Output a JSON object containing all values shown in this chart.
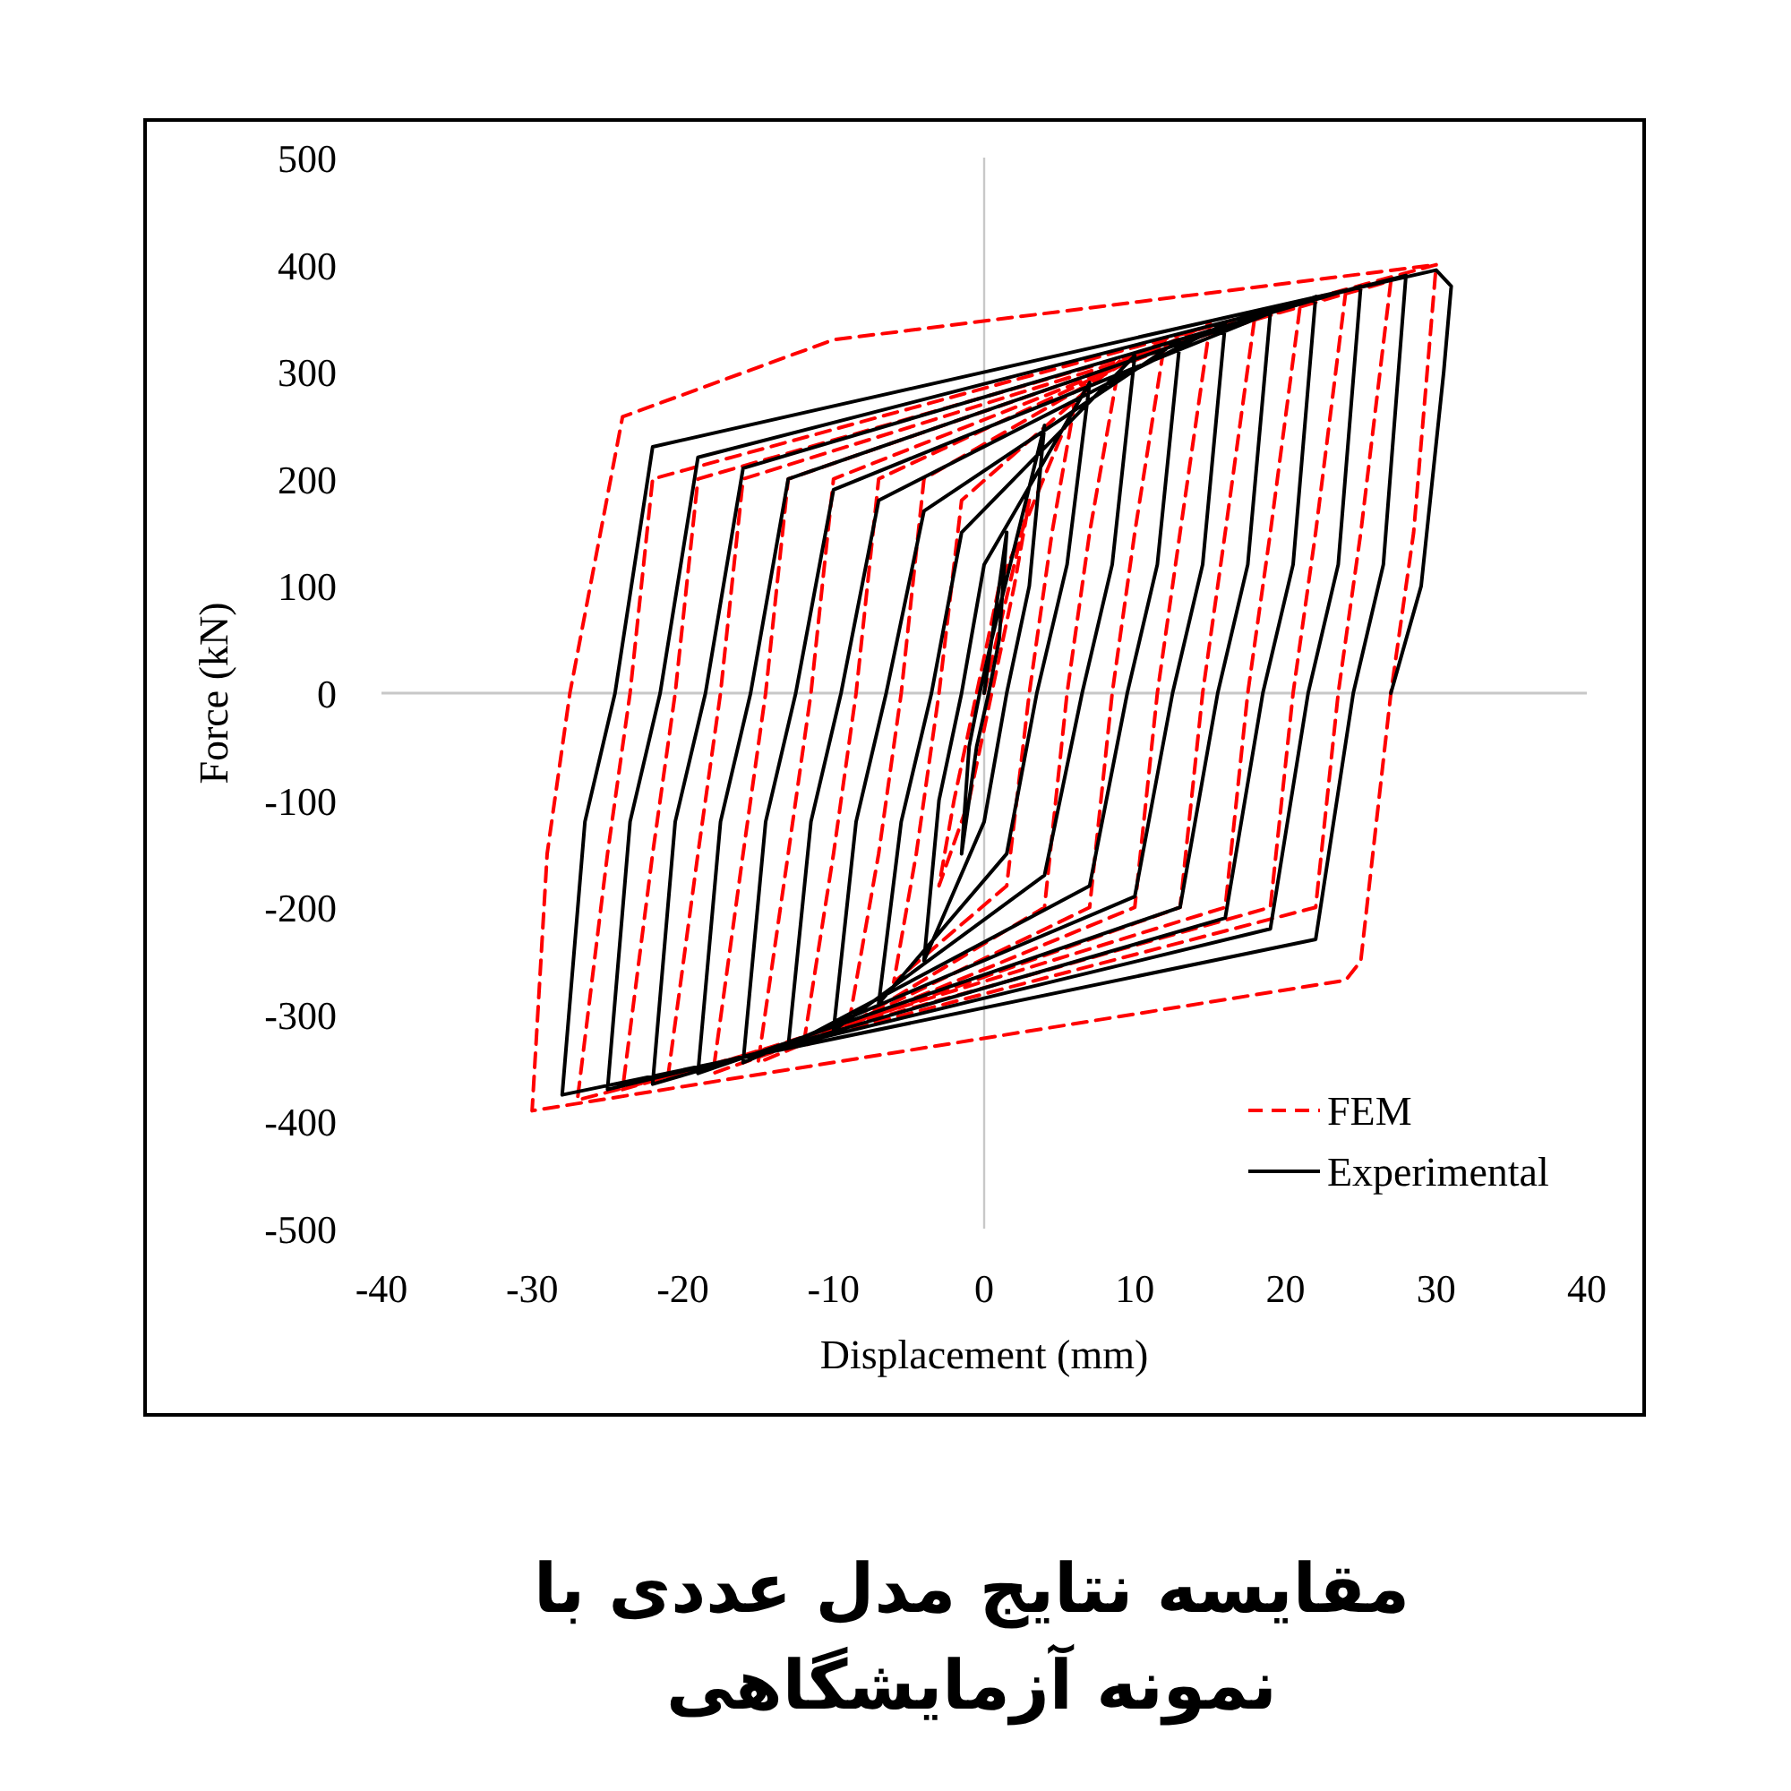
{
  "chart_data": {
    "type": "line",
    "xlabel": "Displacement (mm)",
    "ylabel": "Force (kN)",
    "xlim": [
      -40,
      40
    ],
    "ylim": [
      -500,
      500
    ],
    "xticks": [
      -40,
      -30,
      -20,
      -10,
      0,
      10,
      20,
      30,
      40
    ],
    "yticks": [
      -500,
      -400,
      -300,
      -200,
      -100,
      0,
      100,
      200,
      300,
      400,
      500
    ],
    "grid": false,
    "legend": "bottom right",
    "series": [
      {
        "name": "FEM",
        "color": "#ff0000",
        "line_style": "dashed",
        "x": [
          0,
          3,
          2,
          0.5,
          -1,
          -3,
          -2,
          -0.5,
          1,
          6,
          4.5,
          3,
          1.5,
          -6,
          -4.5,
          -3,
          -1.5,
          9,
          7,
          5.5,
          4,
          -9,
          -7,
          -5.5,
          -4,
          12,
          10,
          8.5,
          7,
          -12,
          -10,
          -8.5,
          -7,
          15,
          13,
          11.5,
          10,
          -15,
          -13,
          -11.5,
          -10,
          18,
          16,
          14.5,
          13,
          -18,
          -16,
          -14.5,
          -13,
          21,
          19,
          17.5,
          16,
          -21,
          -19,
          -17.5,
          -16,
          24,
          22,
          20.5,
          19,
          -24,
          -22,
          -20.5,
          -19,
          27,
          25,
          23.5,
          22,
          -27,
          -25,
          -23.5,
          -22,
          30,
          28.5,
          27,
          25,
          24,
          -30,
          -29,
          -27.5,
          -24,
          -10,
          30
        ],
        "values": [
          0,
          180,
          100,
          0,
          -100,
          -180,
          -100,
          0,
          100,
          270,
          150,
          0,
          -180,
          -270,
          -150,
          0,
          180,
          310,
          150,
          0,
          -200,
          -310,
          -150,
          0,
          200,
          330,
          150,
          0,
          -200,
          -330,
          -150,
          0,
          200,
          345,
          150,
          0,
          -200,
          -345,
          -150,
          0,
          200,
          355,
          150,
          0,
          -200,
          -355,
          -150,
          0,
          200,
          365,
          150,
          0,
          -200,
          -360,
          -150,
          0,
          200,
          375,
          150,
          0,
          -200,
          -370,
          -150,
          0,
          200,
          385,
          150,
          0,
          -200,
          -380,
          -150,
          0,
          200,
          400,
          150,
          0,
          -250,
          -268,
          -390,
          -150,
          0,
          258,
          330,
          400
        ]
      },
      {
        "name": "Experimental",
        "color": "#000000",
        "line_style": "solid",
        "x": [
          0,
          1.5,
          1,
          0.3,
          -0.5,
          -1.5,
          -1,
          -0.3,
          0.5,
          4,
          3,
          1.5,
          0,
          -4,
          -3,
          -1.5,
          0,
          7,
          5.5,
          3.5,
          1.5,
          -7,
          -5.5,
          -3.5,
          -1.5,
          10,
          8.5,
          6.5,
          4,
          -10,
          -8.5,
          -6.5,
          -4,
          13,
          11.5,
          9.5,
          7,
          -13,
          -11.5,
          -9.5,
          -7,
          16,
          14.5,
          12.5,
          10,
          -16,
          -14.5,
          -12.5,
          -10,
          19,
          17.5,
          15.5,
          13,
          -19,
          -17.5,
          -15.5,
          -13,
          22,
          20.5,
          18.5,
          16,
          -22,
          -20.5,
          -18.5,
          -16,
          25,
          23.5,
          21.5,
          19,
          -25,
          -23.5,
          -21.5,
          -19,
          28,
          26.5,
          24.5,
          22,
          -28,
          -26.5,
          -24.5,
          -22,
          30,
          31,
          30.5,
          29,
          27
        ],
        "values": [
          0,
          150,
          50,
          0,
          -50,
          -150,
          -50,
          0,
          50,
          250,
          100,
          0,
          -120,
          -250,
          -100,
          0,
          120,
          290,
          120,
          0,
          -150,
          -290,
          -120,
          0,
          150,
          315,
          120,
          0,
          -170,
          -315,
          -120,
          0,
          170,
          330,
          120,
          0,
          -180,
          -330,
          -120,
          0,
          180,
          345,
          120,
          0,
          -190,
          -345,
          -120,
          0,
          190,
          355,
          120,
          0,
          -200,
          -355,
          -120,
          0,
          200,
          370,
          120,
          0,
          -210,
          -365,
          -120,
          0,
          210,
          380,
          120,
          0,
          -220,
          -370,
          -120,
          0,
          220,
          390,
          120,
          0,
          -230,
          -375,
          -120,
          0,
          230,
          395,
          380,
          300,
          100,
          0
        ]
      }
    ],
    "annotations": [
      "مقایسه نتایج مدل عددی با نمونه آزمایشگاهی"
    ]
  }
}
